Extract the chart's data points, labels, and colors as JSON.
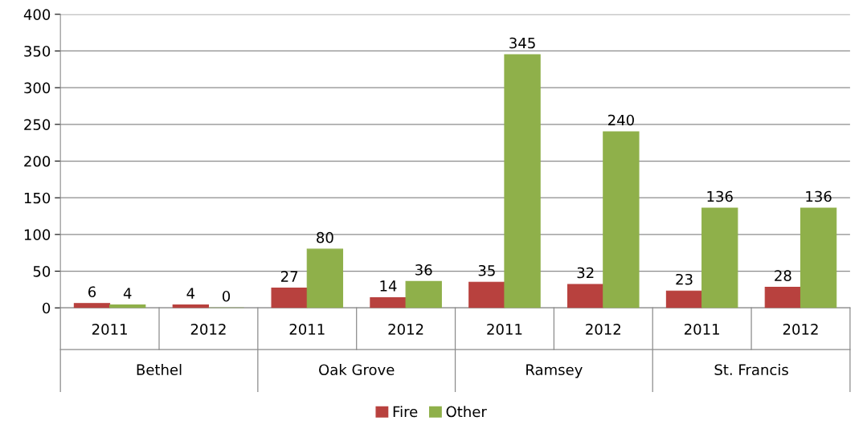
{
  "chart_data": {
    "type": "bar",
    "categories": [
      "2011",
      "2012",
      "2011",
      "2012",
      "2011",
      "2012",
      "2011",
      "2012"
    ],
    "series": [
      {
        "name": "Fire",
        "color": "#b8413e",
        "values": [
          6,
          4,
          27,
          14,
          35,
          32,
          23,
          28
        ]
      },
      {
        "name": "Other",
        "color": "#8fb04a",
        "values": [
          4,
          0,
          80,
          36,
          345,
          240,
          136,
          136
        ]
      }
    ],
    "annotations": [
      "Bethel",
      "Oak Grove",
      "Ramsey",
      "St. Francis"
    ],
    "ylim": [
      0,
      400
    ],
    "yticks": [
      0,
      50,
      100,
      150,
      200,
      250,
      300,
      350,
      400
    ],
    "grid": "y",
    "legend": "bottom",
    "data_labels": true
  }
}
